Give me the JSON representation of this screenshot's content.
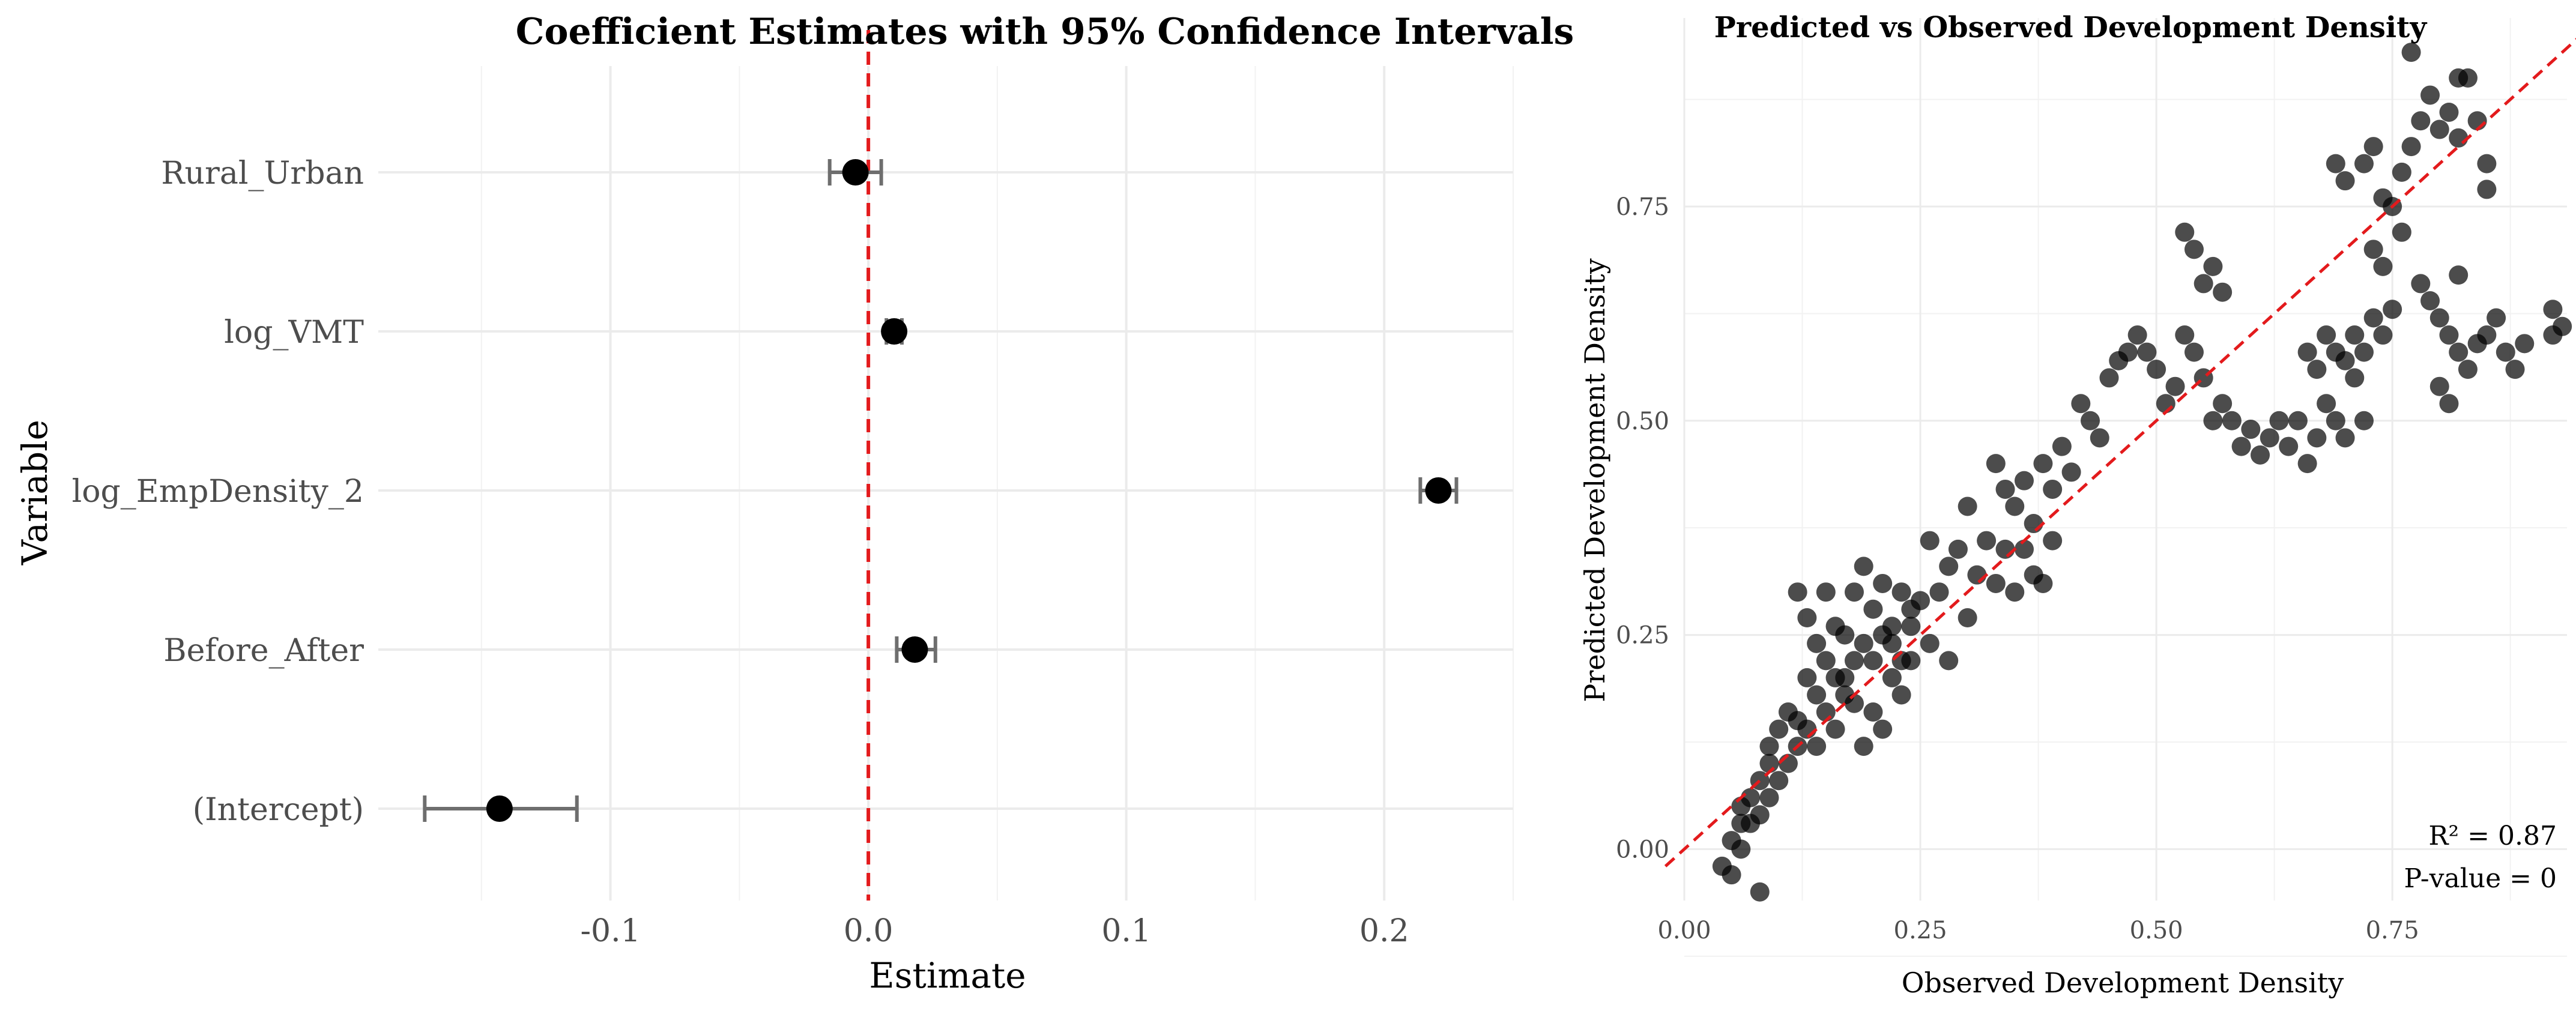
{
  "chart_data": [
    {
      "type": "errorbar",
      "title": "Coefficient Estimates with 95% Confidence Intervals",
      "xlabel": "Estimate",
      "ylabel": "Variable",
      "xlim": [
        -0.19,
        0.25
      ],
      "xticks": [
        -0.1,
        0.0,
        0.1,
        0.2
      ],
      "xtick_labels": [
        "-0.1",
        "0.0",
        "0.1",
        "0.2"
      ],
      "reference_line": {
        "x": 0.0,
        "color": "#e31a1c",
        "style": "dashed"
      },
      "grid": true,
      "variables": [
        {
          "name": "Rural_Urban",
          "estimate": -0.005,
          "lower": -0.015,
          "upper": 0.005
        },
        {
          "name": "log_VMT",
          "estimate": 0.01,
          "lower": 0.007,
          "upper": 0.013
        },
        {
          "name": "log_EmpDensity_2",
          "estimate": 0.221,
          "lower": 0.214,
          "upper": 0.228
        },
        {
          "name": "Before_After",
          "estimate": 0.018,
          "lower": 0.011,
          "upper": 0.026
        },
        {
          "name": "(Intercept)",
          "estimate": -0.143,
          "lower": -0.172,
          "upper": -0.113
        }
      ]
    },
    {
      "type": "scatter",
      "title": "Predicted vs Observed Development Density",
      "xlabel": "Observed Development Density",
      "ylabel": "Predicted Development Density",
      "xlim": [
        0.0,
        0.935
      ],
      "ylim": [
        -0.06,
        0.97
      ],
      "xticks": [
        0.0,
        0.25,
        0.5,
        0.75
      ],
      "xtick_labels": [
        "0.00",
        "0.25",
        "0.50",
        "0.75"
      ],
      "yticks": [
        0.0,
        0.25,
        0.5,
        0.75
      ],
      "ytick_labels": [
        "0.00",
        "0.25",
        "0.50",
        "0.75"
      ],
      "reference_line": {
        "slope": 1,
        "intercept": 0,
        "color": "#e31a1c",
        "style": "dashed"
      },
      "annotations": {
        "r2": "R² = 0.87",
        "pvalue": "P-value = 0"
      },
      "grid": true,
      "points": [
        [
          0.04,
          -0.02
        ],
        [
          0.05,
          -0.03
        ],
        [
          0.06,
          0.0
        ],
        [
          0.07,
          0.03
        ],
        [
          0.08,
          -0.05
        ],
        [
          0.06,
          0.05
        ],
        [
          0.08,
          0.08
        ],
        [
          0.09,
          0.1
        ],
        [
          0.1,
          0.14
        ],
        [
          0.09,
          0.06
        ],
        [
          0.11,
          0.16
        ],
        [
          0.12,
          0.12
        ],
        [
          0.13,
          0.2
        ],
        [
          0.14,
          0.18
        ],
        [
          0.15,
          0.22
        ],
        [
          0.16,
          0.26
        ],
        [
          0.17,
          0.25
        ],
        [
          0.18,
          0.3
        ],
        [
          0.19,
          0.33
        ],
        [
          0.2,
          0.28
        ],
        [
          0.21,
          0.31
        ],
        [
          0.22,
          0.26
        ],
        [
          0.23,
          0.3
        ],
        [
          0.24,
          0.22
        ],
        [
          0.25,
          0.29
        ],
        [
          0.26,
          0.36
        ],
        [
          0.27,
          0.3
        ],
        [
          0.28,
          0.33
        ],
        [
          0.29,
          0.35
        ],
        [
          0.3,
          0.4
        ],
        [
          0.12,
          0.3
        ],
        [
          0.13,
          0.27
        ],
        [
          0.14,
          0.24
        ],
        [
          0.15,
          0.3
        ],
        [
          0.16,
          0.2
        ],
        [
          0.17,
          0.18
        ],
        [
          0.18,
          0.22
        ],
        [
          0.19,
          0.12
        ],
        [
          0.2,
          0.16
        ],
        [
          0.21,
          0.14
        ],
        [
          0.22,
          0.2
        ],
        [
          0.23,
          0.18
        ],
        [
          0.24,
          0.28
        ],
        [
          0.26,
          0.24
        ],
        [
          0.28,
          0.22
        ],
        [
          0.3,
          0.27
        ],
        [
          0.31,
          0.32
        ],
        [
          0.32,
          0.36
        ],
        [
          0.33,
          0.31
        ],
        [
          0.34,
          0.35
        ],
        [
          0.35,
          0.4
        ],
        [
          0.36,
          0.43
        ],
        [
          0.37,
          0.38
        ],
        [
          0.38,
          0.45
        ],
        [
          0.39,
          0.42
        ],
        [
          0.4,
          0.47
        ],
        [
          0.41,
          0.44
        ],
        [
          0.42,
          0.52
        ],
        [
          0.43,
          0.5
        ],
        [
          0.44,
          0.48
        ],
        [
          0.35,
          0.3
        ],
        [
          0.36,
          0.35
        ],
        [
          0.37,
          0.32
        ],
        [
          0.38,
          0.31
        ],
        [
          0.39,
          0.36
        ],
        [
          0.34,
          0.42
        ],
        [
          0.33,
          0.45
        ],
        [
          0.45,
          0.55
        ],
        [
          0.46,
          0.57
        ],
        [
          0.47,
          0.58
        ],
        [
          0.48,
          0.6
        ],
        [
          0.49,
          0.58
        ],
        [
          0.5,
          0.56
        ],
        [
          0.51,
          0.52
        ],
        [
          0.52,
          0.54
        ],
        [
          0.53,
          0.6
        ],
        [
          0.54,
          0.58
        ],
        [
          0.55,
          0.55
        ],
        [
          0.56,
          0.5
        ],
        [
          0.57,
          0.52
        ],
        [
          0.53,
          0.72
        ],
        [
          0.54,
          0.7
        ],
        [
          0.55,
          0.66
        ],
        [
          0.56,
          0.68
        ],
        [
          0.57,
          0.65
        ],
        [
          0.58,
          0.5
        ],
        [
          0.59,
          0.47
        ],
        [
          0.6,
          0.49
        ],
        [
          0.61,
          0.46
        ],
        [
          0.62,
          0.48
        ],
        [
          0.63,
          0.5
        ],
        [
          0.64,
          0.47
        ],
        [
          0.65,
          0.5
        ],
        [
          0.66,
          0.45
        ],
        [
          0.67,
          0.48
        ],
        [
          0.68,
          0.52
        ],
        [
          0.69,
          0.5
        ],
        [
          0.7,
          0.48
        ],
        [
          0.71,
          0.55
        ],
        [
          0.72,
          0.5
        ],
        [
          0.66,
          0.58
        ],
        [
          0.67,
          0.56
        ],
        [
          0.68,
          0.6
        ],
        [
          0.69,
          0.58
        ],
        [
          0.7,
          0.57
        ],
        [
          0.71,
          0.6
        ],
        [
          0.72,
          0.58
        ],
        [
          0.73,
          0.62
        ],
        [
          0.74,
          0.6
        ],
        [
          0.75,
          0.63
        ],
        [
          0.69,
          0.8
        ],
        [
          0.7,
          0.78
        ],
        [
          0.72,
          0.8
        ],
        [
          0.73,
          0.82
        ],
        [
          0.74,
          0.76
        ],
        [
          0.75,
          0.75
        ],
        [
          0.76,
          0.79
        ],
        [
          0.77,
          0.82
        ],
        [
          0.78,
          0.85
        ],
        [
          0.79,
          0.88
        ],
        [
          0.8,
          0.84
        ],
        [
          0.81,
          0.86
        ],
        [
          0.82,
          0.83
        ],
        [
          0.83,
          0.9
        ],
        [
          0.84,
          0.85
        ],
        [
          0.85,
          0.8
        ],
        [
          0.85,
          0.77
        ],
        [
          0.73,
          0.7
        ],
        [
          0.74,
          0.68
        ],
        [
          0.76,
          0.72
        ],
        [
          0.77,
          0.93
        ],
        [
          0.82,
          0.9
        ],
        [
          0.78,
          0.66
        ],
        [
          0.79,
          0.64
        ],
        [
          0.8,
          0.62
        ],
        [
          0.81,
          0.6
        ],
        [
          0.82,
          0.67
        ],
        [
          0.8,
          0.54
        ],
        [
          0.81,
          0.52
        ],
        [
          0.82,
          0.58
        ],
        [
          0.83,
          0.56
        ],
        [
          0.84,
          0.59
        ],
        [
          0.85,
          0.6
        ],
        [
          0.86,
          0.62
        ],
        [
          0.87,
          0.58
        ],
        [
          0.88,
          0.56
        ],
        [
          0.89,
          0.59
        ],
        [
          0.92,
          0.63
        ],
        [
          0.92,
          0.6
        ],
        [
          0.93,
          0.61
        ],
        [
          0.05,
          0.01
        ],
        [
          0.06,
          0.03
        ],
        [
          0.07,
          0.06
        ],
        [
          0.08,
          0.04
        ],
        [
          0.09,
          0.12
        ],
        [
          0.1,
          0.08
        ],
        [
          0.11,
          0.1
        ],
        [
          0.12,
          0.15
        ],
        [
          0.13,
          0.14
        ],
        [
          0.14,
          0.12
        ],
        [
          0.15,
          0.16
        ],
        [
          0.16,
          0.14
        ],
        [
          0.17,
          0.2
        ],
        [
          0.18,
          0.17
        ],
        [
          0.19,
          0.24
        ],
        [
          0.2,
          0.22
        ],
        [
          0.21,
          0.25
        ],
        [
          0.22,
          0.24
        ],
        [
          0.23,
          0.22
        ],
        [
          0.24,
          0.26
        ]
      ]
    }
  ]
}
